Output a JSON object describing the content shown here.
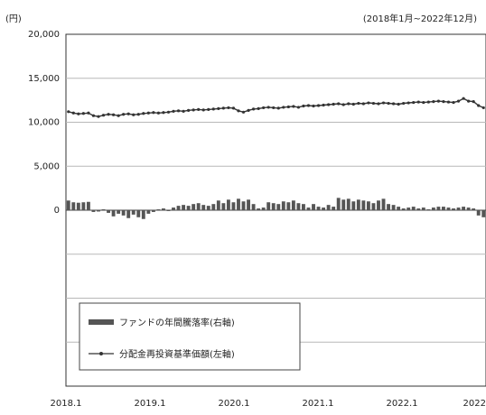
{
  "header": {
    "title_fragment": "",
    "unit_label": "(円)",
    "period": "(2018年1月~2022年12月)"
  },
  "chart_data": {
    "type": "bar+line",
    "yticks": [
      "20,000",
      "15,000",
      "10,000",
      "5,000",
      "0"
    ],
    "ylim": [
      -20000,
      20000
    ],
    "xticks": [
      "2018.1",
      "2019.1",
      "2020.1",
      "2021.1",
      "2022.1",
      "2022"
    ],
    "grid": true,
    "legend_position": "bottom-left",
    "series": [
      {
        "name": "ファンドの年間騰落率(右軸)",
        "type": "bar",
        "color": "#555555",
        "values": [
          1100,
          900,
          850,
          900,
          950,
          -200,
          -150,
          100,
          -300,
          -700,
          -400,
          -600,
          -900,
          -500,
          -800,
          -1000,
          -400,
          -200,
          100,
          200,
          -100,
          300,
          500,
          600,
          500,
          700,
          800,
          600,
          500,
          700,
          1100,
          800,
          1200,
          900,
          1300,
          1000,
          1200,
          700,
          200,
          300,
          900,
          800,
          700,
          1000,
          900,
          1100,
          800,
          700,
          300,
          700,
          400,
          300,
          600,
          400,
          1400,
          1200,
          1300,
          1000,
          1200,
          1100,
          1000,
          800,
          1100,
          1300,
          700,
          600,
          400,
          200,
          300,
          400,
          200,
          300,
          100,
          300,
          400,
          400,
          300,
          200,
          300,
          400,
          300,
          200,
          -600,
          -800
        ]
      },
      {
        "name": "分配金再投資基準価額(左軸)",
        "type": "line",
        "color": "#333333",
        "values": [
          11200,
          11050,
          10950,
          11000,
          11050,
          10750,
          10650,
          10800,
          10900,
          10850,
          10750,
          10900,
          10950,
          10850,
          10900,
          11000,
          11050,
          11100,
          11050,
          11100,
          11150,
          11250,
          11300,
          11250,
          11350,
          11400,
          11450,
          11400,
          11450,
          11500,
          11550,
          11600,
          11650,
          11600,
          11300,
          11150,
          11350,
          11500,
          11550,
          11650,
          11700,
          11650,
          11600,
          11700,
          11750,
          11800,
          11700,
          11850,
          11900,
          11850,
          11900,
          11950,
          12000,
          12050,
          12100,
          12000,
          12100,
          12050,
          12150,
          12100,
          12200,
          12150,
          12100,
          12200,
          12150,
          12100,
          12050,
          12150,
          12200,
          12250,
          12300,
          12250,
          12300,
          12350,
          12400,
          12350,
          12300,
          12250,
          12400,
          12700,
          12400,
          12350,
          11900,
          11650
        ]
      }
    ]
  },
  "colors": {
    "axis": "#333333",
    "grid": "#b8b8b8",
    "zero_line": "#444444"
  }
}
